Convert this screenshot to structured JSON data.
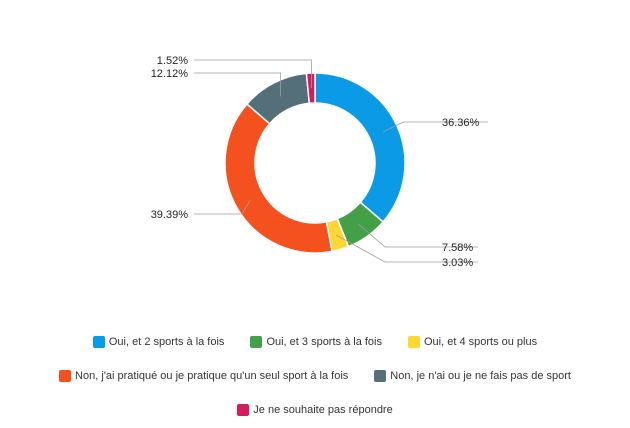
{
  "chart_data": {
    "type": "pie",
    "variant": "donut",
    "categories": [
      "Oui, et 2 sports à la fois",
      "Oui, et 3 sports à la fois",
      "Oui, et 4 sports ou plus",
      "Non, j'ai pratiqué ou je pratique qu'un seul sport à la fois",
      "Non, je n'ai ou je ne fais pas de sport",
      "Je ne souhaite pas répondre"
    ],
    "values": [
      36.36,
      7.58,
      3.03,
      39.39,
      12.12,
      1.52
    ],
    "value_labels": [
      "36.36%",
      "7.58%",
      "3.03%",
      "39.39%",
      "12.12%",
      "1.52%"
    ],
    "colors": [
      "#0b9be6",
      "#43a047",
      "#fdd835",
      "#f4511e",
      "#546e7a",
      "#d81b60"
    ],
    "legend_position": "bottom"
  }
}
